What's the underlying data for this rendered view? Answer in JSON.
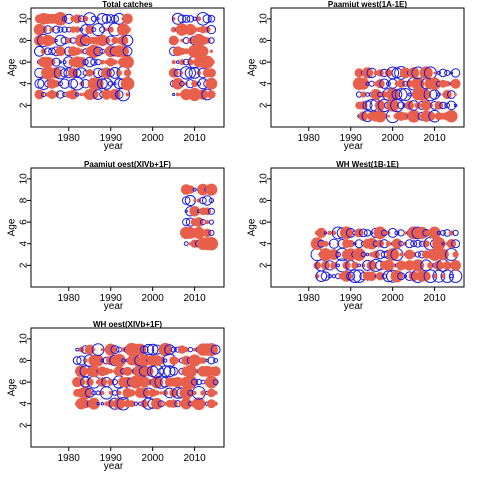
{
  "colors": {
    "positive": "#e8604c",
    "negative": "#1a1adc",
    "frame": "#000000"
  },
  "chart_data": [
    {
      "type": "scatter",
      "title": "Total catches",
      "xlabel": "year",
      "ylabel": "Age",
      "xlim": [
        1971,
        2017
      ],
      "ylim": [
        0,
        11
      ],
      "xticks": [
        "1980",
        "1990",
        "2000",
        "2010"
      ],
      "yticks": [
        "2",
        "4",
        "6",
        "8",
        "10"
      ],
      "year_ranges": [
        [
          1973,
          1994
        ],
        [
          2005,
          2014
        ]
      ],
      "ages": [
        3,
        4,
        5,
        6,
        7,
        8,
        9,
        10
      ],
      "grid": false
    },
    {
      "type": "scatter",
      "title": "Paamiut    west(1A-1E)",
      "xlabel": "year",
      "ylabel": "Age",
      "xlim": [
        1971,
        2017
      ],
      "ylim": [
        0,
        11
      ],
      "xticks": [
        "1980",
        "1990",
        "2000",
        "2010"
      ],
      "yticks": [
        "2",
        "4",
        "6",
        "8",
        "10"
      ],
      "year_ranges": [
        [
          1992,
          2015
        ]
      ],
      "ages": [
        1,
        2,
        3,
        4,
        5
      ],
      "grid": false
    },
    {
      "type": "scatter",
      "title": "Paamiut    oest(XIVb+1F)",
      "xlabel": "year",
      "ylabel": "Age",
      "xlim": [
        1971,
        2017
      ],
      "ylim": [
        0,
        11
      ],
      "xticks": [
        "1980",
        "1990",
        "2000",
        "2010"
      ],
      "yticks": [
        "2",
        "4",
        "6",
        "8",
        "10"
      ],
      "year_ranges": [
        [
          2008,
          2014
        ]
      ],
      "ages": [
        4,
        5,
        6,
        7,
        8,
        9
      ],
      "grid": false
    },
    {
      "type": "scatter",
      "title": "WH   West(1B-1E)",
      "xlabel": "year",
      "ylabel": "Age",
      "xlim": [
        1971,
        2017
      ],
      "ylim": [
        0,
        11
      ],
      "xticks": [
        "1980",
        "1990",
        "2000",
        "2010"
      ],
      "yticks": [
        "2",
        "4",
        "6",
        "8",
        "10"
      ],
      "year_ranges": [
        [
          1982,
          2015
        ]
      ],
      "ages": [
        1,
        2,
        3,
        4,
        5
      ],
      "grid": false
    },
    {
      "type": "scatter",
      "title": "WH   oest(XIVb+1F)",
      "xlabel": "year",
      "ylabel": "Age",
      "xlim": [
        1971,
        2017
      ],
      "ylim": [
        0,
        11
      ],
      "xticks": [
        "1980",
        "1990",
        "2000",
        "2010"
      ],
      "yticks": [
        "2",
        "4",
        "6",
        "8",
        "10"
      ],
      "year_ranges": [
        [
          1982,
          2015
        ]
      ],
      "ages": [
        4,
        5,
        6,
        7,
        8,
        9
      ],
      "grid": false
    }
  ]
}
